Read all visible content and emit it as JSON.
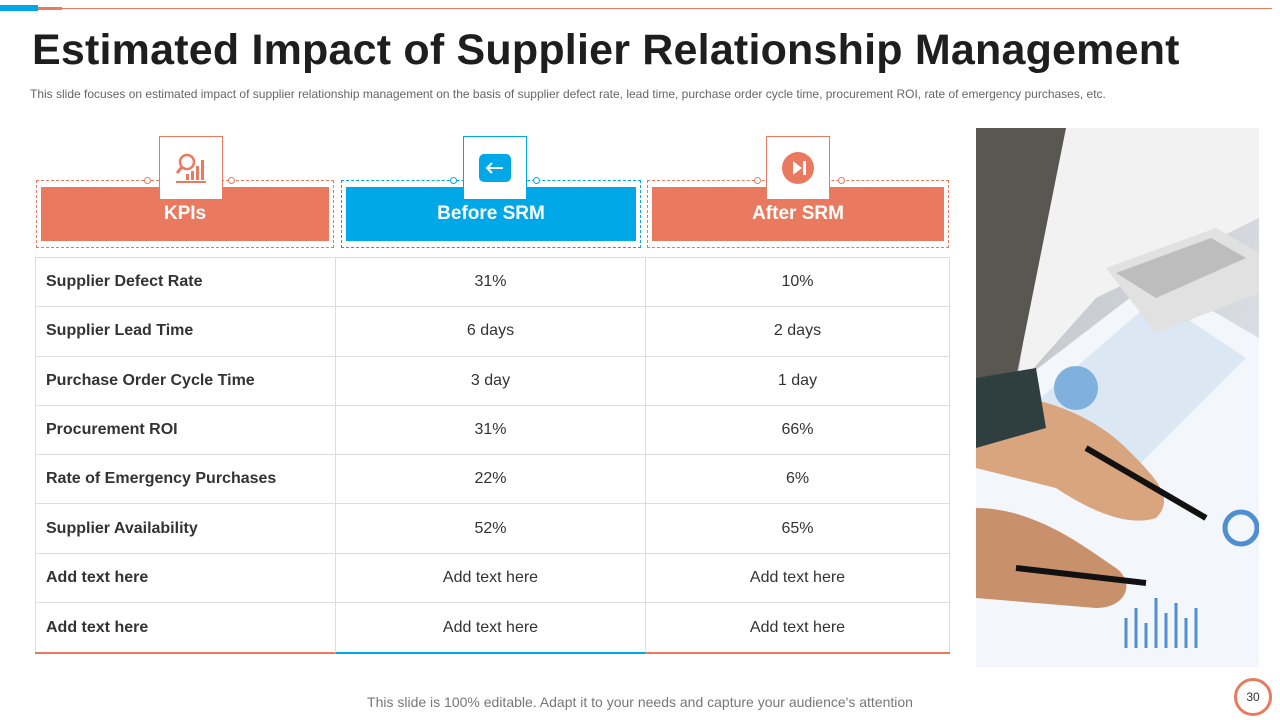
{
  "slide": {
    "title": "Estimated Impact of Supplier Relationship Management",
    "subtitle": "This slide focuses on estimated impact of supplier relationship management on the basis of supplier defect rate, lead time, purchase order cycle time, procurement ROI, rate of emergency purchases, etc.",
    "footer": "This slide is 100% editable. Adapt it to your needs and capture your audience's attention",
    "page_number": "30"
  },
  "colors": {
    "accent_orange": "#e97a5f",
    "accent_blue": "#00a8e8"
  },
  "table": {
    "headers": [
      {
        "label": "KPIs",
        "icon": "chart-icon"
      },
      {
        "label": "Before SRM",
        "icon": "arrow-left-icon"
      },
      {
        "label": "After SRM",
        "icon": "skip-forward-icon"
      }
    ],
    "rows": [
      [
        "Supplier Defect Rate",
        "31%",
        "10%"
      ],
      [
        "Supplier Lead Time",
        "6 days",
        "2 days"
      ],
      [
        "Purchase Order Cycle Time",
        "3 day",
        "1 day"
      ],
      [
        "Procurement ROI",
        "31%",
        "66%"
      ],
      [
        "Rate of Emergency Purchases",
        "22%",
        "6%"
      ],
      [
        "Supplier Availability",
        "52%",
        "65%"
      ],
      [
        "Add text here",
        "Add text here",
        "Add text here"
      ],
      [
        "Add text here",
        "Add text here",
        "Add text here"
      ]
    ]
  },
  "image": {
    "subject": "hands-with-pen-over-report-photo"
  }
}
